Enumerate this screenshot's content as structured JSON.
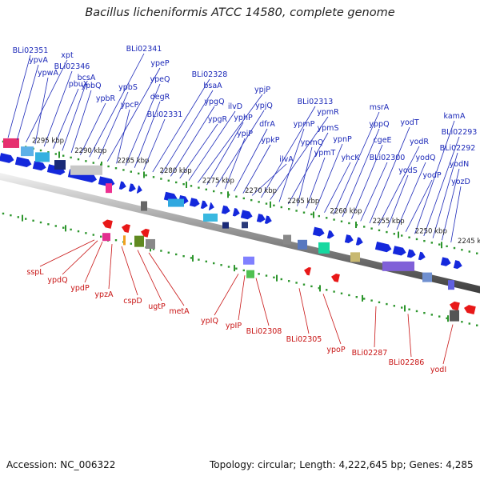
{
  "title": "Bacillus licheniformis ATCC 14580, complete genome",
  "accession": "Accession: NC_006322",
  "summary": "Topology: circular; Length: 4,222,645 bp; Genes: 4,285",
  "colors": {
    "forward_gene": "#1428dc",
    "reverse_gene": "#e81818",
    "forward_label": "#1b28b8",
    "reverse_label": "#c81414",
    "tick": "#2d962d",
    "backbone": "#8a8a8a"
  },
  "scale_labels": [
    "2295 kbp",
    "2290 kbp",
    "2285 kbp",
    "2280 kbp",
    "2275 kbp",
    "2270 kbp",
    "2265 kbp",
    "2260 kbp",
    "2255 kbp",
    "2250 kbp",
    "2245 kbp"
  ],
  "forward_genes": [
    "BLi02351",
    "ypvA",
    "xpt",
    "ypwA",
    "BLi02346",
    "pbuX",
    "bcsA",
    "ypbQ",
    "ypbR",
    "BLi02341",
    "ypbS",
    "ypeP",
    "ypcP",
    "ypeQ",
    "degR",
    "BLi02331",
    "BLi02328",
    "bsaA",
    "ypgQ",
    "ypgR",
    "ilvD",
    "ypjP",
    "yphP",
    "ypjQ",
    "ypiP",
    "dfrA",
    "ypkP",
    "ilvA",
    "BLi02313",
    "ypmR",
    "ypmP",
    "ypmS",
    "ypmQ",
    "ypmT",
    "ypnP",
    "yhcK",
    "msrA",
    "yppQ",
    "cgeE",
    "BLi02300",
    "yodT",
    "yodR",
    "yodS",
    "yodQ",
    "yodP",
    "kamA",
    "BLi02293",
    "BLi02292",
    "yodN",
    "yozD"
  ],
  "reverse_genes": [
    "sspL",
    "ypdQ",
    "ypdP",
    "ypzA",
    "cspD",
    "ugtP",
    "metA",
    "ypIQ",
    "ypIP",
    "BLi02308",
    "BLi02305",
    "ypoP",
    "BLi02287",
    "BLi02286",
    "yodI"
  ]
}
